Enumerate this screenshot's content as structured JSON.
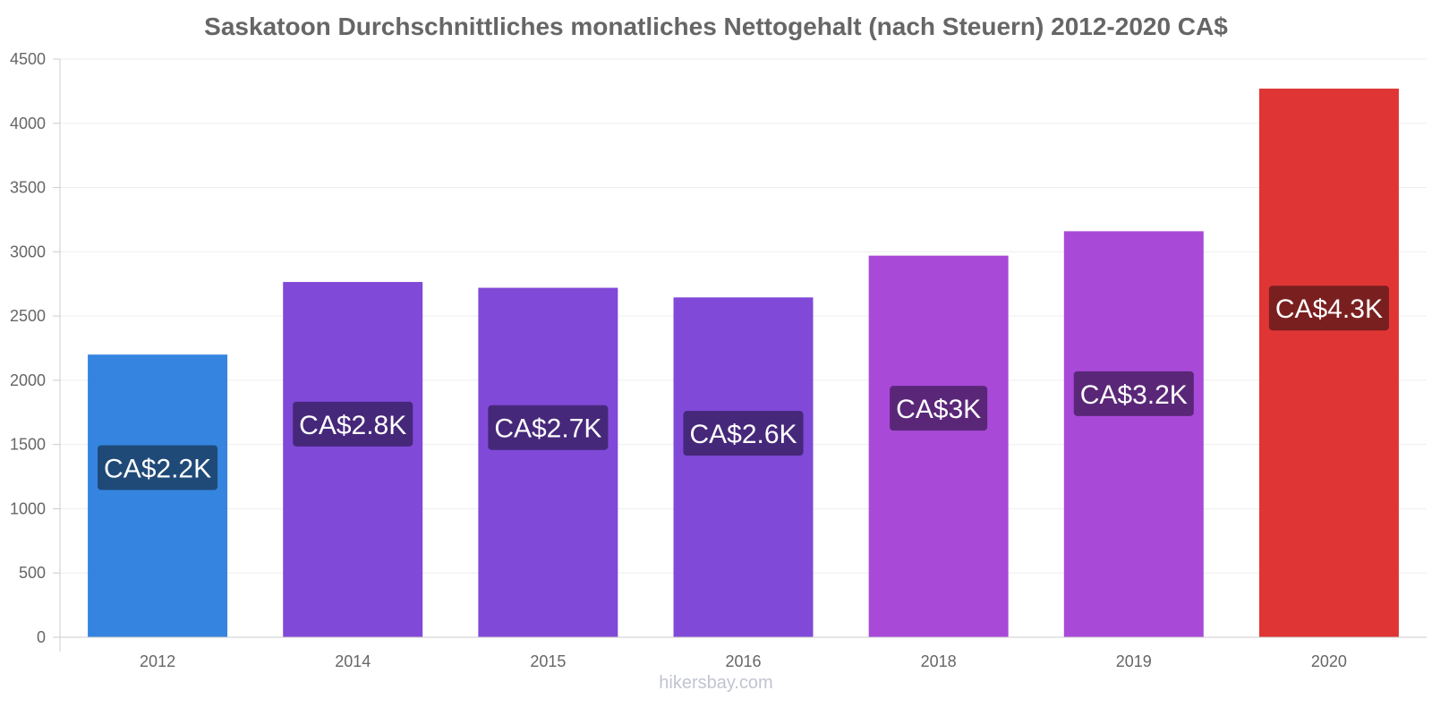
{
  "chart_data": {
    "type": "bar",
    "title": "Saskatoon Durchschnittliches monatliches Nettogehalt (nach Steuern) 2012-2020 CA$",
    "xlabel": "",
    "ylabel": "",
    "categories": [
      "2012",
      "2014",
      "2015",
      "2016",
      "2018",
      "2019",
      "2020"
    ],
    "values": [
      2200,
      2765,
      2720,
      2645,
      2970,
      3160,
      4270
    ],
    "data_labels": [
      "CA$2.2K",
      "CA$2.8K",
      "CA$2.7K",
      "CA$2.6K",
      "CA$3K",
      "CA$3.2K",
      "CA$4.3K"
    ],
    "bar_colors": [
      "#3584e0",
      "#8049d8",
      "#8049d8",
      "#8049d8",
      "#a849d8",
      "#a849d8",
      "#e03535"
    ],
    "label_bg_colors": [
      "#1f4a78",
      "#46287a",
      "#46287a",
      "#46287a",
      "#5a2778",
      "#5a2778",
      "#7a1f1f"
    ],
    "ylim": [
      0,
      4500
    ],
    "yticks": [
      0,
      500,
      1000,
      1500,
      2000,
      2500,
      3000,
      3500,
      4000,
      4500
    ],
    "grid": true,
    "legend": "none"
  },
  "watermark": "hikersbay.com"
}
